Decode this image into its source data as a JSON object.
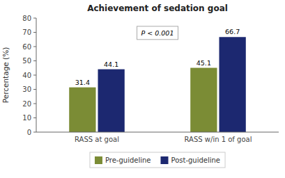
{
  "chart_data": {
    "type": "bar",
    "title": "Achievement of sedation goal",
    "categories": [
      "RASS at goal",
      "RASS w/in 1 of goal"
    ],
    "series": [
      {
        "name": "Pre-guideline",
        "color": "#7b8c35",
        "values": [
          31.4,
          45.1
        ]
      },
      {
        "name": "Post-guideline",
        "color": "#1c2870",
        "values": [
          44.1,
          66.7
        ]
      }
    ],
    "ylabel": "Percentage (%)",
    "ylim": [
      0,
      80
    ],
    "yticks": [
      0,
      10,
      20,
      30,
      40,
      50,
      60,
      70,
      80
    ],
    "annotation": "P < 0.001",
    "data_labels": true,
    "legend": "bottom",
    "grid": false
  }
}
